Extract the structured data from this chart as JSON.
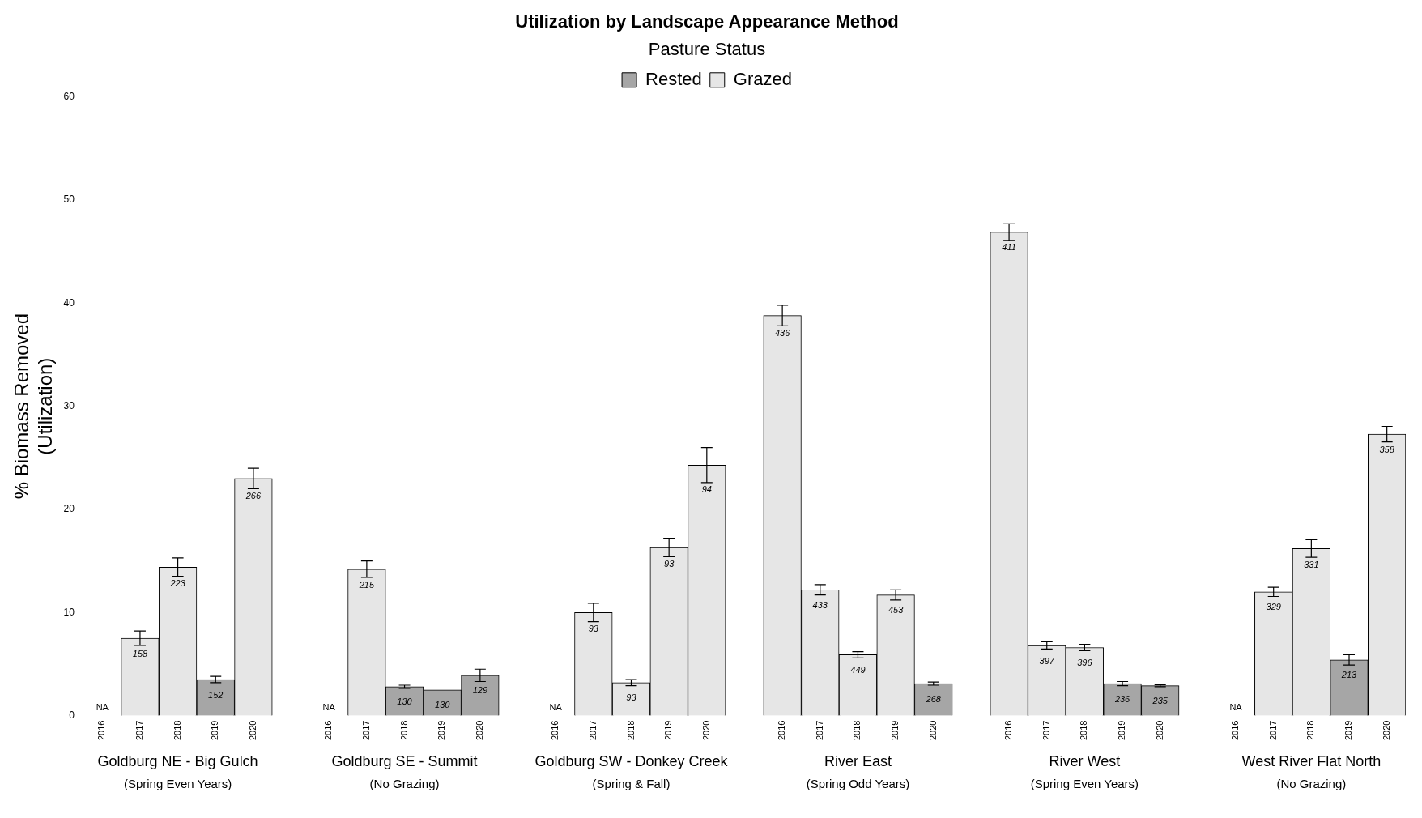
{
  "chart_data": {
    "type": "bar",
    "title": "Utilization by Landscape Appearance Method",
    "ylabel": "% Biomass Removed\n(Utilization)",
    "legend_title": "Pasture Status",
    "legend": "top",
    "categories": [
      "2016",
      "2017",
      "2018",
      "2019",
      "2020",
      null,
      "2016",
      "2017",
      "2018",
      "2019",
      "2020",
      null,
      "2016",
      "2017",
      "2018",
      "2019",
      "2020",
      null,
      "2016",
      "2017",
      "2018",
      "2019",
      "2020",
      null,
      "2016",
      "2017",
      "2018",
      "2019",
      "2020",
      null,
      "2016",
      "2017",
      "2018",
      "2019",
      "2020"
    ],
    "ylim": [
      0,
      60
    ],
    "yticks": [
      0,
      10,
      20,
      30,
      40,
      50,
      60
    ],
    "series": [
      {
        "name": "Rested",
        "color": "#a6a6a6",
        "values": [
          null,
          null,
          null,
          3.5,
          null,
          null,
          null,
          null,
          2.8,
          2.5,
          3.9,
          null,
          null,
          null,
          null,
          null,
          null,
          null,
          null,
          null,
          null,
          null,
          3.1,
          null,
          null,
          null,
          null,
          3.1,
          2.9,
          null,
          null,
          null,
          null,
          5.4,
          null
        ],
        "errors": [
          null,
          null,
          null,
          0.3,
          null,
          null,
          null,
          null,
          0.15,
          null,
          0.6,
          null,
          null,
          null,
          null,
          null,
          null,
          null,
          null,
          null,
          null,
          null,
          0.15,
          null,
          null,
          null,
          null,
          0.2,
          0.1,
          null,
          null,
          null,
          null,
          0.5,
          null
        ],
        "value_labels": [
          null,
          null,
          null,
          null,
          null,
          null,
          null,
          null,
          null,
          null,
          null,
          null,
          null,
          null,
          null,
          null,
          null,
          null,
          null,
          null,
          null,
          null,
          null,
          null,
          null,
          null,
          null,
          null,
          null,
          null,
          null,
          null,
          null,
          null,
          null
        ]
      },
      {
        "name": "Grazed",
        "color": "#e6e6e6",
        "values": [
          null,
          7.5,
          14.4,
          null,
          23,
          null,
          null,
          14.2,
          null,
          null,
          null,
          null,
          null,
          10,
          3.2,
          16.3,
          24.3,
          null,
          38.8,
          12.2,
          5.9,
          11.7,
          null,
          null,
          46.9,
          6.8,
          6.6,
          null,
          null,
          null,
          null,
          12,
          16.2,
          null,
          27.3
        ],
        "errors": [
          null,
          0.7,
          0.9,
          null,
          1,
          null,
          null,
          0.8,
          null,
          null,
          null,
          null,
          null,
          0.9,
          0.3,
          0.9,
          1.7,
          null,
          1,
          0.5,
          0.3,
          0.5,
          null,
          null,
          0.8,
          0.35,
          0.3,
          null,
          null,
          null,
          null,
          0.45,
          0.85,
          null,
          0.75
        ],
        "value_labels": [
          "NA",
          null,
          null,
          null,
          null,
          null,
          "NA",
          null,
          null,
          null,
          null,
          null,
          "NA",
          null,
          null,
          null,
          null,
          null,
          null,
          null,
          null,
          null,
          null,
          null,
          null,
          null,
          null,
          null,
          null,
          null,
          "NA",
          null,
          null,
          null,
          null
        ]
      }
    ],
    "annotations": [
      {
        "text": "158",
        "y": 7.5
      },
      {
        "text": "223",
        "y": 14.4
      },
      {
        "text": "152",
        "y": 3.5
      },
      {
        "text": "266",
        "y": 23
      },
      {
        "text": "215",
        "y": 14.2
      },
      {
        "text": "130",
        "y": 2.8
      },
      {
        "text": "130",
        "y": 2.5
      },
      {
        "text": "129",
        "y": 3.9
      },
      {
        "text": "93",
        "y": 10
      },
      {
        "text": "93",
        "y": 3.2
      },
      {
        "text": "93",
        "y": 16.3
      },
      {
        "text": "94",
        "y": 24.3
      },
      {
        "text": "436",
        "y": 38.8
      },
      {
        "text": "433",
        "y": 12.2
      },
      {
        "text": "449",
        "y": 5.9
      },
      {
        "text": "453",
        "y": 11.7
      },
      {
        "text": "268",
        "y": 3.1
      },
      {
        "text": "411",
        "y": 46.9
      },
      {
        "text": "397",
        "y": 6.8
      },
      {
        "text": "396",
        "y": 6.6
      },
      {
        "text": "236",
        "y": 3.1
      },
      {
        "text": "235",
        "y": 2.9
      },
      {
        "text": "329",
        "y": 12
      },
      {
        "text": "331",
        "y": 16.2
      },
      {
        "text": "213",
        "y": 5.4
      },
      {
        "text": "358",
        "y": 27.3
      },
      "Goldburg NE - Big Gulch",
      "(Spring Even Years)",
      "Goldburg SE - Summit",
      "(No Grazing)",
      "Goldburg SW - Donkey Creek",
      "(Spring & Fall)",
      "River East",
      "(Spring Odd Years)",
      "River West",
      "(Spring Even Years)",
      "West River Flat North",
      "(No Grazing)"
    ]
  }
}
